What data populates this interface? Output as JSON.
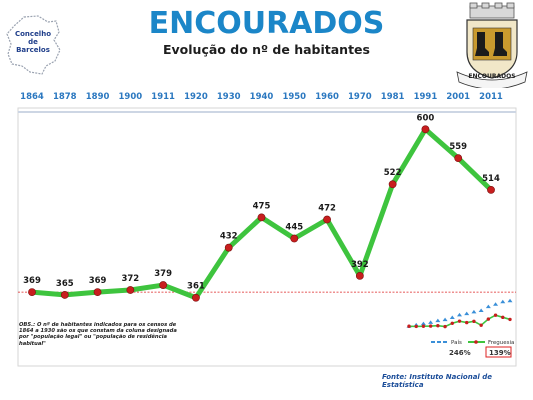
{
  "header": {
    "title": "ENCOURADOS",
    "subtitle": "Evolução do nº de habitantes",
    "map_badge_lines": [
      "Concelho",
      "de",
      "Barcelos"
    ],
    "coat_of_arms_text": "ENCOURADOS"
  },
  "chart_data": {
    "type": "line",
    "title": "Evolução do nº de habitantes",
    "categories": [
      "1864",
      "1878",
      "1890",
      "1900",
      "1911",
      "1920",
      "1930",
      "1940",
      "1950",
      "1960",
      "1970",
      "1981",
      "1991",
      "2001",
      "2011"
    ],
    "series": [
      {
        "values": [
          369,
          365,
          369,
          372,
          379,
          361,
          432,
          475,
          445,
          472,
          392,
          522,
          600,
          559,
          514
        ]
      }
    ],
    "reference_line": 369,
    "ylim": [
      250,
      650
    ],
    "colors": {
      "line": "#3ec43e",
      "marker": "#c81e1e",
      "year": "#2b78c0",
      "reference": "#dd2222"
    },
    "grid": false
  },
  "inset": {
    "legend": [
      {
        "label": "País",
        "color": "#3a8fd8"
      },
      {
        "label": "Freguesia",
        "color": "#c81e1e"
      }
    ],
    "pais_change": "246%",
    "freguesia_change": "139%",
    "pais_values": [
      100,
      108,
      115,
      122,
      132,
      138,
      150,
      165,
      172,
      182,
      190,
      212,
      226,
      240,
      246
    ],
    "freguesia_values": [
      100,
      99,
      100,
      101,
      103,
      98,
      117,
      129,
      121,
      128,
      106,
      141,
      163,
      151,
      139
    ]
  },
  "note": "OBS.: O nº de habitantes indicados para os censos de 1864 a 1930 são os que constam da coluna designada por \"população legal\" ou \"população de residência habitual\"",
  "source": "Fonte: Instituto Nacional de Estatística"
}
